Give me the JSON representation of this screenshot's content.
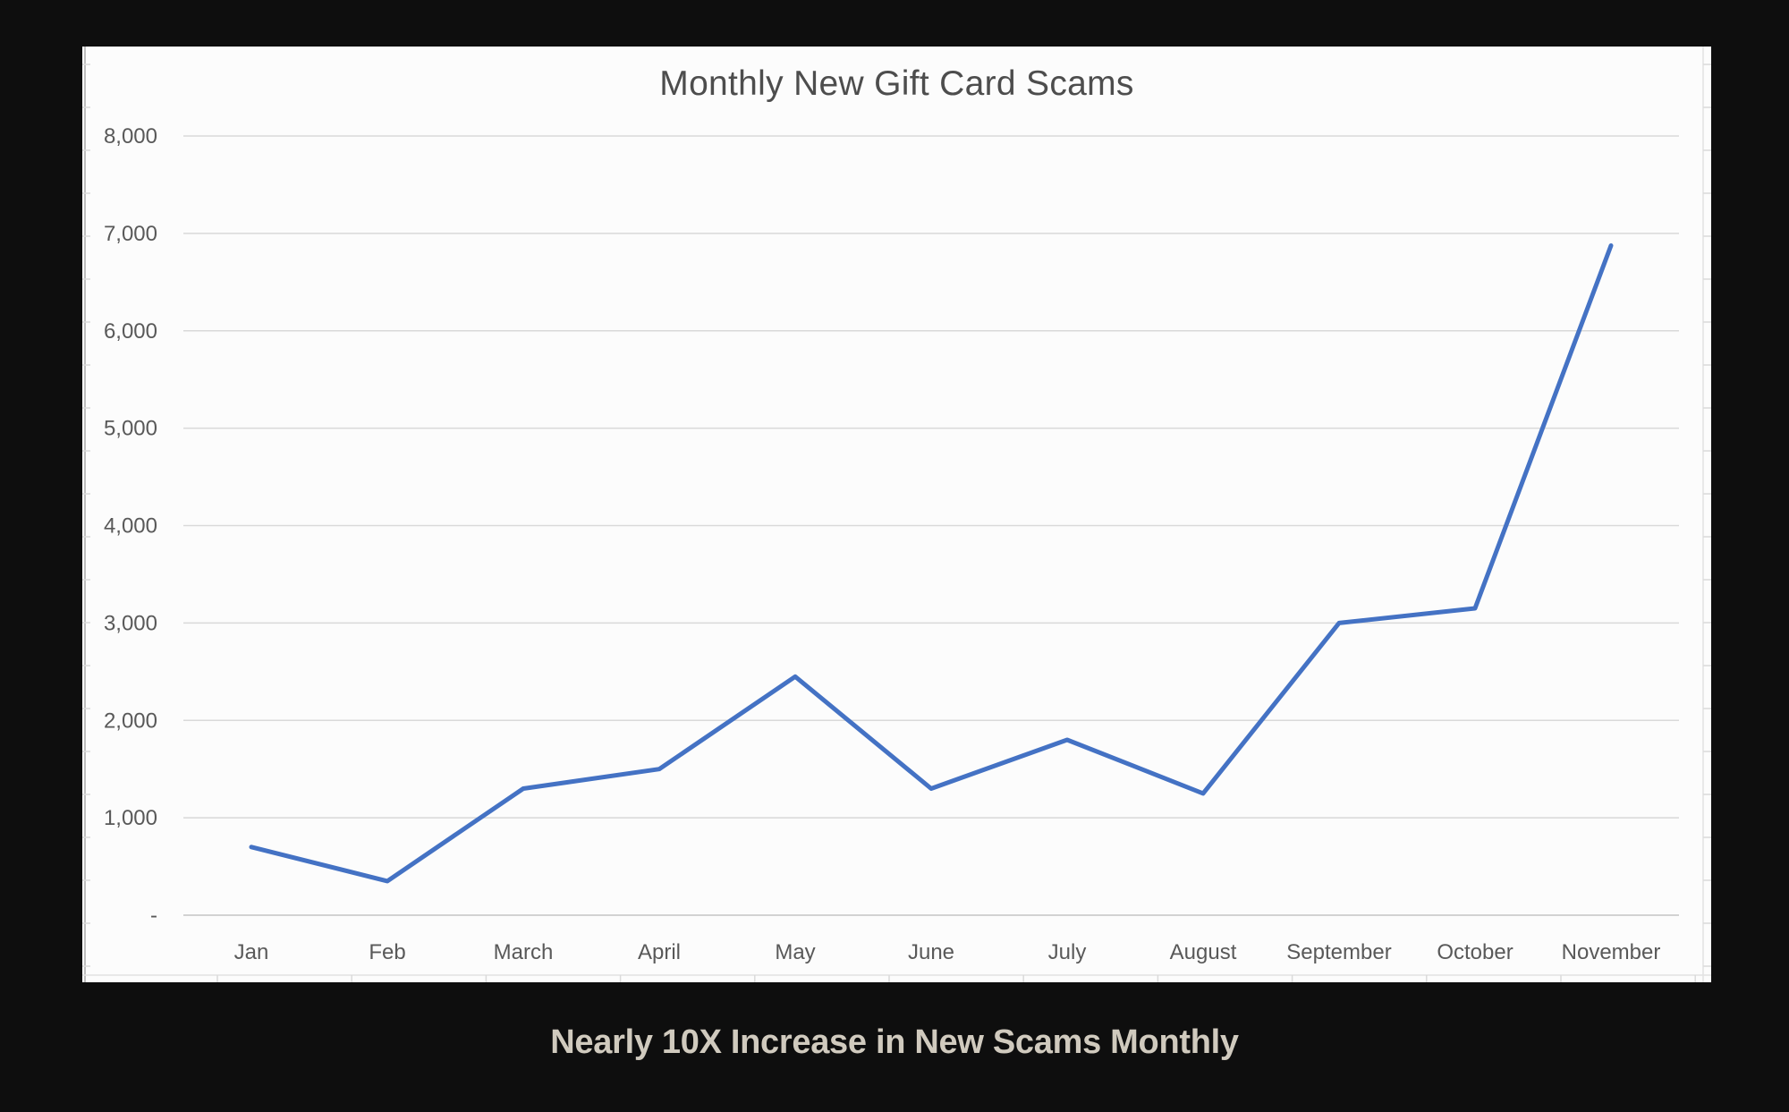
{
  "page": {
    "background": "#0e0e0e"
  },
  "chart_data": {
    "type": "line",
    "title": "Monthly New Gift Card Scams",
    "categories": [
      "Jan",
      "Feb",
      "March",
      "April",
      "May",
      "June",
      "July",
      "August",
      "September",
      "October",
      "November"
    ],
    "values": [
      700,
      350,
      1300,
      1500,
      2450,
      1300,
      1800,
      1250,
      3000,
      3150,
      6875
    ],
    "xlabel": "",
    "ylabel": "",
    "ylim": [
      0,
      8000
    ],
    "y_ticks": [
      0,
      1000,
      2000,
      3000,
      4000,
      5000,
      6000,
      7000,
      8000
    ],
    "y_tick_labels": [
      "-",
      "1,000",
      "2,000",
      "3,000",
      "4,000",
      "5,000",
      "6,000",
      "7,000",
      "8,000"
    ],
    "grid": true,
    "legend": false,
    "colors": {
      "line": "#4472C4",
      "grid": "#d9d9d9",
      "axis": "#c3c3c3",
      "tick_text": "#595959",
      "title_text": "#4d4d4d",
      "panel_bg": "#fcfcfc"
    }
  },
  "caption": {
    "text": "Nearly 10X Increase in New Scams Monthly",
    "color": "#d0cabe"
  }
}
